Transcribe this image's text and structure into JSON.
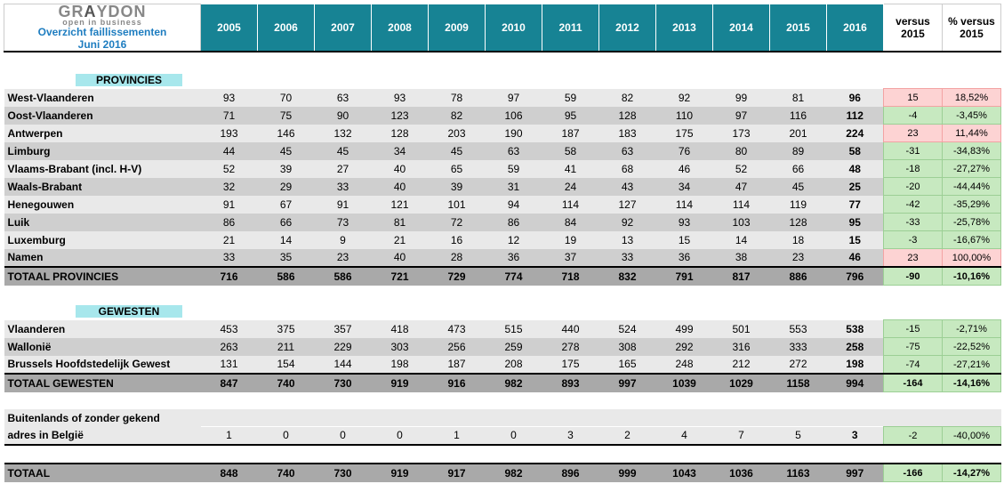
{
  "header": {
    "brand_top": "GRAYDON",
    "brand_tag": "open in business",
    "title1": "Overzicht faillissementen",
    "title2": "Juni 2016",
    "years": [
      "2005",
      "2006",
      "2007",
      "2008",
      "2009",
      "2010",
      "2011",
      "2012",
      "2013",
      "2014",
      "2015",
      "2016"
    ],
    "versus": "versus 2015",
    "pct": "% versus 2015"
  },
  "section1": "PROVINCIES",
  "provinces": [
    {
      "n": "West-Vlaanderen",
      "v": [
        93,
        70,
        63,
        93,
        78,
        97,
        59,
        82,
        92,
        99,
        81,
        96
      ],
      "d": 15,
      "p": "18,52%",
      "s": "neg"
    },
    {
      "n": "Oost-Vlaanderen",
      "v": [
        71,
        75,
        90,
        123,
        82,
        106,
        95,
        128,
        110,
        97,
        116,
        112
      ],
      "d": -4,
      "p": "-3,45%",
      "s": "pos"
    },
    {
      "n": "Antwerpen",
      "v": [
        193,
        146,
        132,
        128,
        203,
        190,
        187,
        183,
        175,
        173,
        201,
        224
      ],
      "d": 23,
      "p": "11,44%",
      "s": "neg"
    },
    {
      "n": "Limburg",
      "v": [
        44,
        45,
        45,
        34,
        45,
        63,
        58,
        63,
        76,
        80,
        89,
        58
      ],
      "d": -31,
      "p": "-34,83%",
      "s": "pos"
    },
    {
      "n": "Vlaams-Brabant (incl. H-V)",
      "v": [
        52,
        39,
        27,
        40,
        65,
        59,
        41,
        68,
        46,
        52,
        66,
        48
      ],
      "d": -18,
      "p": "-27,27%",
      "s": "pos"
    },
    {
      "n": "Waals-Brabant",
      "v": [
        32,
        29,
        33,
        40,
        39,
        31,
        24,
        43,
        34,
        47,
        45,
        25
      ],
      "d": -20,
      "p": "-44,44%",
      "s": "pos"
    },
    {
      "n": "Henegouwen",
      "v": [
        91,
        67,
        91,
        121,
        101,
        94,
        114,
        127,
        114,
        114,
        119,
        77
      ],
      "d": -42,
      "p": "-35,29%",
      "s": "pos"
    },
    {
      "n": "Luik",
      "v": [
        86,
        66,
        73,
        81,
        72,
        86,
        84,
        92,
        93,
        103,
        128,
        95
      ],
      "d": -33,
      "p": "-25,78%",
      "s": "pos"
    },
    {
      "n": "Luxemburg",
      "v": [
        21,
        14,
        9,
        21,
        16,
        12,
        19,
        13,
        15,
        14,
        18,
        15
      ],
      "d": -3,
      "p": "-16,67%",
      "s": "pos"
    },
    {
      "n": "Namen",
      "v": [
        33,
        35,
        23,
        40,
        28,
        36,
        37,
        33,
        36,
        38,
        23,
        46
      ],
      "d": 23,
      "p": "100,00%",
      "s": "neg"
    }
  ],
  "provTotal": {
    "n": "TOTAAL PROVINCIES",
    "v": [
      716,
      586,
      586,
      721,
      729,
      774,
      718,
      832,
      791,
      817,
      886,
      796
    ],
    "d": -90,
    "p": "-10,16%",
    "s": "pos"
  },
  "section2": "GEWESTEN",
  "regions": [
    {
      "n": "Vlaanderen",
      "v": [
        453,
        375,
        357,
        418,
        473,
        515,
        440,
        524,
        499,
        501,
        553,
        538
      ],
      "d": -15,
      "p": "-2,71%",
      "s": "pos"
    },
    {
      "n": "Wallonië",
      "v": [
        263,
        211,
        229,
        303,
        256,
        259,
        278,
        308,
        292,
        316,
        333,
        258
      ],
      "d": -75,
      "p": "-22,52%",
      "s": "pos"
    },
    {
      "n": "Brussels Hoofdstedelijk Gewest",
      "v": [
        131,
        154,
        144,
        198,
        187,
        208,
        175,
        165,
        248,
        212,
        272,
        198
      ],
      "d": -74,
      "p": "-27,21%",
      "s": "pos"
    }
  ],
  "regTotal": {
    "n": "TOTAAL GEWESTEN",
    "v": [
      847,
      740,
      730,
      919,
      916,
      982,
      893,
      997,
      1039,
      1029,
      1158,
      994
    ],
    "d": -164,
    "p": "-14,16%",
    "s": "pos"
  },
  "foreign": {
    "n": "Buitenlands of zonder gekend adres in België",
    "n1": "Buitenlands of zonder gekend",
    "n2": "adres in België",
    "v": [
      1,
      0,
      0,
      0,
      1,
      0,
      3,
      2,
      4,
      7,
      5,
      3
    ],
    "d": -2,
    "p": "-40,00%",
    "s": "pos"
  },
  "grand": {
    "n": "TOTAAL",
    "v": [
      848,
      740,
      730,
      919,
      917,
      982,
      896,
      999,
      1043,
      1036,
      1163,
      997
    ],
    "d": -166,
    "p": "-14,27%",
    "s": "pos"
  },
  "widths": {
    "label": 221,
    "year": 64,
    "vs": 66,
    "pct": 66
  }
}
